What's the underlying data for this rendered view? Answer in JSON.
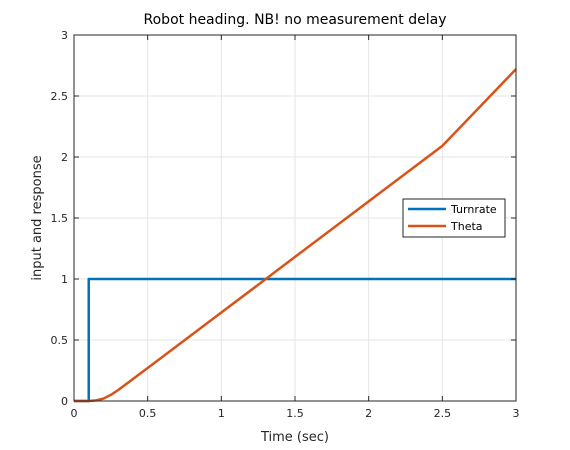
{
  "chart_data": {
    "type": "line",
    "title": "Robot heading. NB! no measurement delay",
    "xlabel": "Time (sec)",
    "ylabel": "input and response",
    "xlim": [
      0,
      3
    ],
    "ylim": [
      0,
      3
    ],
    "xticks": [
      0,
      0.5,
      1,
      1.5,
      2,
      2.5,
      3
    ],
    "xtick_labels": [
      "0",
      "0.5",
      "1",
      "1.5",
      "2",
      "2.5",
      "3"
    ],
    "yticks": [
      0,
      0.5,
      1,
      1.5,
      2,
      2.5,
      3
    ],
    "ytick_labels": [
      "0",
      "0.5",
      "1",
      "1.5",
      "2",
      "2.5",
      "3"
    ],
    "grid": true,
    "legend_position": "right",
    "series": [
      {
        "name": "Turnrate",
        "color": "#0072BD",
        "x": [
          0,
          0.1,
          0.1,
          3
        ],
        "y": [
          0,
          0,
          1,
          1
        ]
      },
      {
        "name": "Theta",
        "color": "#D95319",
        "x": [
          0,
          0.1,
          0.15,
          0.2,
          0.25,
          0.3,
          0.35,
          0.4,
          0.5,
          1,
          1.5,
          2,
          2.5,
          3
        ],
        "y": [
          0,
          0,
          0.005,
          0.02,
          0.05,
          0.09,
          0.135,
          0.18,
          0.27,
          0.725,
          1.181,
          1.636,
          2.091,
          2.72
        ]
      }
    ]
  }
}
